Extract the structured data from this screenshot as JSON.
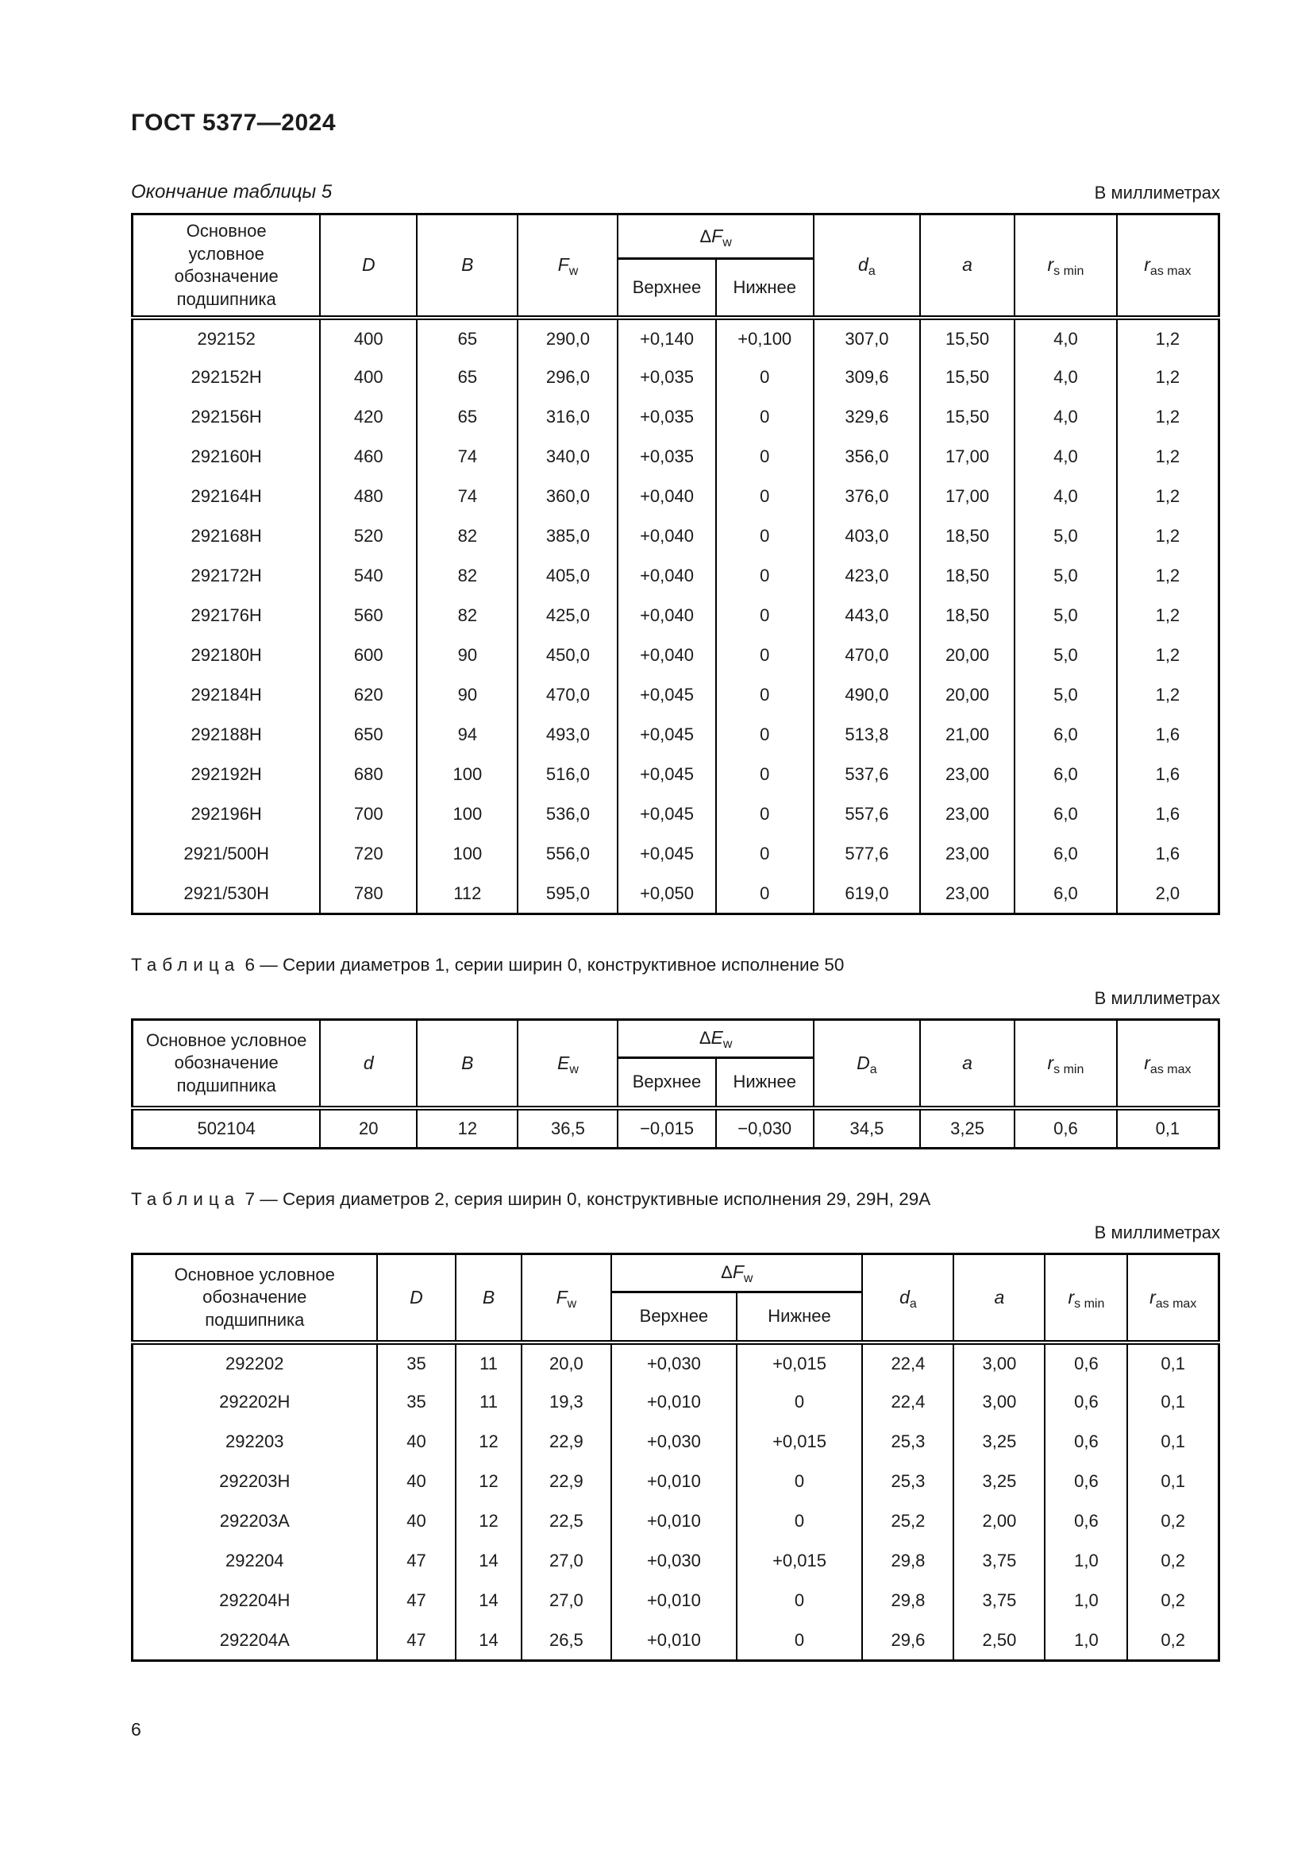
{
  "page": {
    "doc_code": "ГОСТ 5377—2024",
    "continuation_caption": "Окончание таблицы 5",
    "units_label": "В миллиметрах",
    "page_number": "6"
  },
  "table5": {
    "header": {
      "name": "Основное условное обозначение подшипника",
      "v1": "D",
      "v2": "B",
      "v3_var": "F",
      "v3_sub": "w",
      "delta_prefix": "Δ",
      "delta_var": "F",
      "delta_sub": "w",
      "upper": "Верхнее",
      "lower": "Нижнее",
      "v4_var": "d",
      "v4_sub": "a",
      "v5": "a",
      "v6_var": "r",
      "v6_sub": "s min",
      "v7_var": "r",
      "v7_sub": "as max"
    },
    "rows": [
      [
        "292152",
        "400",
        "65",
        "290,0",
        "+0,140",
        "+0,100",
        "307,0",
        "15,50",
        "4,0",
        "1,2"
      ],
      [
        "292152Н",
        "400",
        "65",
        "296,0",
        "+0,035",
        "0",
        "309,6",
        "15,50",
        "4,0",
        "1,2"
      ],
      [
        "292156Н",
        "420",
        "65",
        "316,0",
        "+0,035",
        "0",
        "329,6",
        "15,50",
        "4,0",
        "1,2"
      ],
      [
        "292160Н",
        "460",
        "74",
        "340,0",
        "+0,035",
        "0",
        "356,0",
        "17,00",
        "4,0",
        "1,2"
      ],
      [
        "292164Н",
        "480",
        "74",
        "360,0",
        "+0,040",
        "0",
        "376,0",
        "17,00",
        "4,0",
        "1,2"
      ],
      [
        "292168Н",
        "520",
        "82",
        "385,0",
        "+0,040",
        "0",
        "403,0",
        "18,50",
        "5,0",
        "1,2"
      ],
      [
        "292172Н",
        "540",
        "82",
        "405,0",
        "+0,040",
        "0",
        "423,0",
        "18,50",
        "5,0",
        "1,2"
      ],
      [
        "292176Н",
        "560",
        "82",
        "425,0",
        "+0,040",
        "0",
        "443,0",
        "18,50",
        "5,0",
        "1,2"
      ],
      [
        "292180Н",
        "600",
        "90",
        "450,0",
        "+0,040",
        "0",
        "470,0",
        "20,00",
        "5,0",
        "1,2"
      ],
      [
        "292184Н",
        "620",
        "90",
        "470,0",
        "+0,045",
        "0",
        "490,0",
        "20,00",
        "5,0",
        "1,2"
      ],
      [
        "292188Н",
        "650",
        "94",
        "493,0",
        "+0,045",
        "0",
        "513,8",
        "21,00",
        "6,0",
        "1,6"
      ],
      [
        "292192Н",
        "680",
        "100",
        "516,0",
        "+0,045",
        "0",
        "537,6",
        "23,00",
        "6,0",
        "1,6"
      ],
      [
        "292196Н",
        "700",
        "100",
        "536,0",
        "+0,045",
        "0",
        "557,6",
        "23,00",
        "6,0",
        "1,6"
      ],
      [
        "2921/500Н",
        "720",
        "100",
        "556,0",
        "+0,045",
        "0",
        "577,6",
        "23,00",
        "6,0",
        "1,6"
      ],
      [
        "2921/530Н",
        "780",
        "112",
        "595,0",
        "+0,050",
        "0",
        "619,0",
        "23,00",
        "6,0",
        "2,0"
      ]
    ]
  },
  "table6": {
    "caption_label": "Таблица",
    "caption_num": "6",
    "caption_text": "— Серии диаметров 1, серии ширин 0, конструктивное исполнение 50",
    "header": {
      "name": "Основное условное обозначение подшипника",
      "v1": "d",
      "v2": "B",
      "v3_var": "E",
      "v3_sub": "w",
      "delta_prefix": "Δ",
      "delta_var": "E",
      "delta_sub": "w",
      "upper": "Верхнее",
      "lower": "Нижнее",
      "v4_var": "D",
      "v4_sub": "a",
      "v5": "a",
      "v6_var": "r",
      "v6_sub": "s min",
      "v7_var": "r",
      "v7_sub": "as max"
    },
    "rows": [
      [
        "502104",
        "20",
        "12",
        "36,5",
        "−0,015",
        "−0,030",
        "34,5",
        "3,25",
        "0,6",
        "0,1"
      ]
    ]
  },
  "table7": {
    "caption_label": "Таблица",
    "caption_num": "7",
    "caption_text": "— Серия диаметров 2, серия ширин 0, конструктивные исполнения 29, 29Н, 29А",
    "header": {
      "name": "Основное условное обозначение подшипника",
      "v1": "D",
      "v2": "B",
      "v3_var": "F",
      "v3_sub": "w",
      "delta_prefix": "Δ",
      "delta_var": "F",
      "delta_sub": "w",
      "upper": "Верхнее",
      "lower": "Нижнее",
      "v4_var": "d",
      "v4_sub": "a",
      "v5": "a",
      "v6_var": "r",
      "v6_sub": "s min",
      "v7_var": "r",
      "v7_sub": "as max"
    },
    "rows": [
      [
        "292202",
        "35",
        "11",
        "20,0",
        "+0,030",
        "+0,015",
        "22,4",
        "3,00",
        "0,6",
        "0,1"
      ],
      [
        "292202Н",
        "35",
        "11",
        "19,3",
        "+0,010",
        "0",
        "22,4",
        "3,00",
        "0,6",
        "0,1"
      ],
      [
        "292203",
        "40",
        "12",
        "22,9",
        "+0,030",
        "+0,015",
        "25,3",
        "3,25",
        "0,6",
        "0,1"
      ],
      [
        "292203Н",
        "40",
        "12",
        "22,9",
        "+0,010",
        "0",
        "25,3",
        "3,25",
        "0,6",
        "0,1"
      ],
      [
        "292203А",
        "40",
        "12",
        "22,5",
        "+0,010",
        "0",
        "25,2",
        "2,00",
        "0,6",
        "0,2"
      ],
      [
        "292204",
        "47",
        "14",
        "27,0",
        "+0,030",
        "+0,015",
        "29,8",
        "3,75",
        "1,0",
        "0,2"
      ],
      [
        "292204Н",
        "47",
        "14",
        "27,0",
        "+0,010",
        "0",
        "29,8",
        "3,75",
        "1,0",
        "0,2"
      ],
      [
        "292204А",
        "47",
        "14",
        "26,5",
        "+0,010",
        "0",
        "29,6",
        "2,50",
        "1,0",
        "0,2"
      ]
    ]
  }
}
